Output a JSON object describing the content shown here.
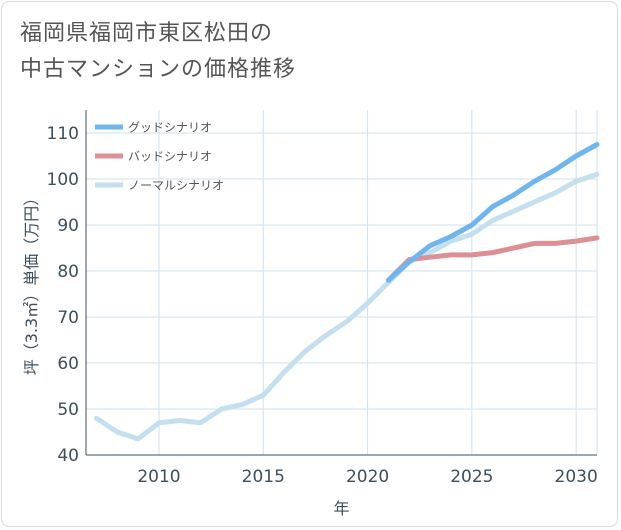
{
  "title": {
    "line1": "福岡県福岡市東区松田の",
    "line2": "中古マンションの価格推移"
  },
  "colors": {
    "good": "#6fb6ee",
    "bad": "#dc8f95",
    "normal": "#c3dff0",
    "grid": "#cfe2ee",
    "axis": "#3d4f5c"
  },
  "chart_data": {
    "type": "line",
    "xlabel": "年",
    "ylabel": "坪（3.3㎡）単価（万円）",
    "xlim": [
      2006.5,
      2031
    ],
    "ylim": [
      40,
      115
    ],
    "xticks": [
      2010,
      2015,
      2020,
      2025,
      2030
    ],
    "yticks": [
      40,
      50,
      60,
      70,
      80,
      90,
      100,
      110
    ],
    "grid": true,
    "legend_position": "top-left",
    "series": [
      {
        "name": "グッドシナリオ",
        "color_key": "good",
        "x": [
          2021,
          2022,
          2023,
          2024,
          2025,
          2026,
          2027,
          2028,
          2029,
          2030,
          2031
        ],
        "y": [
          78,
          82,
          85.5,
          87.5,
          90,
          94,
          96.5,
          99.5,
          102,
          105,
          107.5
        ]
      },
      {
        "name": "バッドシナリオ",
        "color_key": "bad",
        "x": [
          2021,
          2022,
          2023,
          2024,
          2025,
          2026,
          2027,
          2028,
          2029,
          2030,
          2031
        ],
        "y": [
          78,
          82.5,
          83,
          83.5,
          83.5,
          84,
          85,
          86,
          86,
          86.5,
          87.2
        ]
      },
      {
        "name": "ノーマルシナリオ",
        "color_key": "normal",
        "x": [
          2007,
          2008,
          2009,
          2010,
          2011,
          2012,
          2013,
          2014,
          2015,
          2016,
          2017,
          2018,
          2019,
          2020,
          2021,
          2022,
          2023,
          2024,
          2025,
          2026,
          2027,
          2028,
          2029,
          2030,
          2031
        ],
        "y": [
          48,
          45,
          43.5,
          47,
          47.5,
          47,
          50,
          51,
          53,
          58,
          62.5,
          66,
          69,
          73,
          77.5,
          82,
          84,
          86.5,
          88,
          91,
          93,
          95,
          97,
          99.5,
          101
        ]
      }
    ]
  }
}
